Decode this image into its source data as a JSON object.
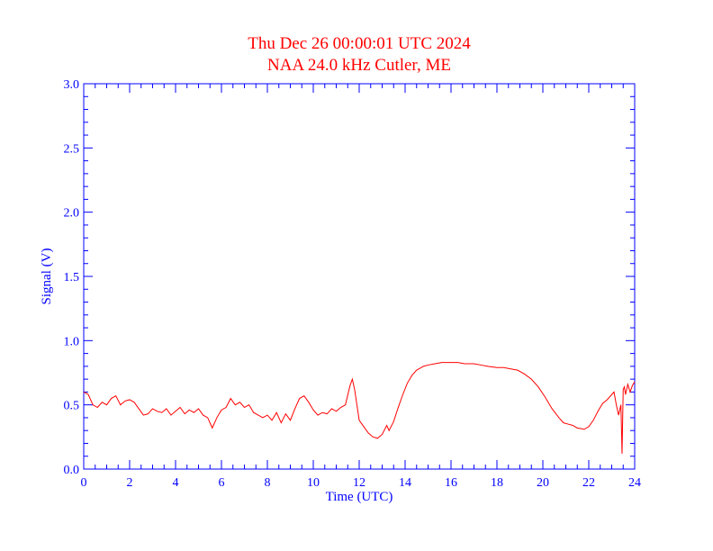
{
  "colors": {
    "title": "#ff0000",
    "axes": "#0000ff",
    "line": "#ff0000",
    "background": "#ffffff"
  },
  "chart_data": {
    "type": "line",
    "title": "Thu Dec 26 00:00:01 UTC 2024",
    "subtitle": "NAA 24.0 kHz Cutler, ME",
    "xlabel": "Time (UTC)",
    "ylabel": "Signal (V)",
    "xlim": [
      0,
      24
    ],
    "ylim": [
      0,
      3.0
    ],
    "xticks": [
      0,
      2,
      4,
      6,
      8,
      10,
      12,
      14,
      16,
      18,
      20,
      22,
      24
    ],
    "xtick_labels": [
      "0",
      "2",
      "4",
      "6",
      "8",
      "10",
      "12",
      "14",
      "16",
      "18",
      "20",
      "22",
      "24"
    ],
    "yticks": [
      0,
      0.5,
      1.0,
      1.5,
      2.0,
      2.5,
      3.0
    ],
    "ytick_labels": [
      "0.0",
      "0.5",
      "1.0",
      "1.5",
      "2.0",
      "2.5",
      "3.0"
    ],
    "grid": false,
    "series": [
      {
        "name": "NAA 24.0 kHz",
        "x": [
          0,
          0.2,
          0.4,
          0.6,
          0.8,
          1.0,
          1.2,
          1.4,
          1.6,
          1.8,
          2.0,
          2.2,
          2.4,
          2.6,
          2.8,
          3.0,
          3.2,
          3.4,
          3.6,
          3.8,
          4.0,
          4.2,
          4.4,
          4.6,
          4.8,
          5.0,
          5.2,
          5.4,
          5.6,
          5.8,
          6.0,
          6.2,
          6.4,
          6.6,
          6.8,
          7.0,
          7.2,
          7.4,
          7.6,
          7.8,
          8.0,
          8.2,
          8.4,
          8.6,
          8.8,
          9.0,
          9.2,
          9.4,
          9.6,
          9.8,
          10.0,
          10.2,
          10.4,
          10.6,
          10.8,
          11.0,
          11.2,
          11.4,
          11.6,
          11.7,
          11.8,
          11.9,
          12.0,
          12.2,
          12.4,
          12.6,
          12.8,
          13.0,
          13.2,
          13.3,
          13.5,
          13.7,
          13.9,
          14.1,
          14.3,
          14.5,
          14.8,
          15.0,
          15.3,
          15.6,
          16.0,
          16.3,
          16.6,
          17.0,
          17.3,
          17.6,
          18.0,
          18.3,
          18.6,
          18.9,
          19.2,
          19.5,
          19.8,
          20.1,
          20.4,
          20.7,
          20.9,
          21.1,
          21.3,
          21.5,
          21.8,
          22.0,
          22.2,
          22.4,
          22.6,
          22.8,
          23.0,
          23.1,
          23.2,
          23.3,
          23.4,
          23.45,
          23.5,
          23.55,
          23.6,
          23.7,
          23.8,
          23.9,
          24.0
        ],
        "y": [
          0.6,
          0.58,
          0.5,
          0.48,
          0.52,
          0.5,
          0.55,
          0.57,
          0.5,
          0.53,
          0.54,
          0.52,
          0.47,
          0.42,
          0.43,
          0.47,
          0.45,
          0.44,
          0.47,
          0.42,
          0.45,
          0.48,
          0.43,
          0.46,
          0.44,
          0.47,
          0.42,
          0.4,
          0.32,
          0.4,
          0.46,
          0.48,
          0.55,
          0.5,
          0.52,
          0.48,
          0.5,
          0.44,
          0.42,
          0.4,
          0.42,
          0.38,
          0.44,
          0.36,
          0.43,
          0.38,
          0.47,
          0.55,
          0.57,
          0.52,
          0.46,
          0.42,
          0.44,
          0.43,
          0.47,
          0.45,
          0.48,
          0.5,
          0.65,
          0.7,
          0.62,
          0.5,
          0.38,
          0.33,
          0.28,
          0.25,
          0.24,
          0.27,
          0.34,
          0.3,
          0.37,
          0.48,
          0.58,
          0.67,
          0.73,
          0.77,
          0.8,
          0.81,
          0.82,
          0.83,
          0.83,
          0.83,
          0.82,
          0.82,
          0.81,
          0.8,
          0.79,
          0.79,
          0.78,
          0.77,
          0.74,
          0.7,
          0.64,
          0.56,
          0.47,
          0.4,
          0.36,
          0.35,
          0.34,
          0.32,
          0.31,
          0.33,
          0.38,
          0.45,
          0.51,
          0.54,
          0.58,
          0.6,
          0.5,
          0.42,
          0.5,
          0.12,
          0.62,
          0.64,
          0.58,
          0.66,
          0.6,
          0.65,
          0.68
        ]
      }
    ]
  }
}
